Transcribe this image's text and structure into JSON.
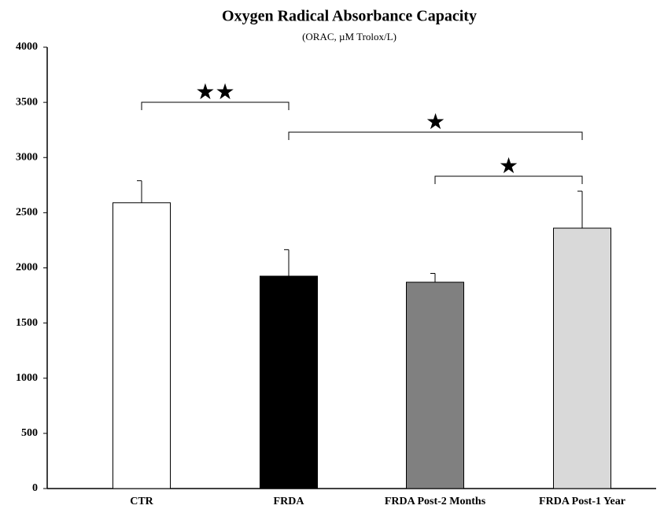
{
  "chart_data": {
    "type": "bar",
    "title": "Oxygen Radical Absorbance Capacity",
    "subtitle": "(ORAC, µM Trolox/L)",
    "categories": [
      "CTR",
      "FRDA",
      "FRDA Post-2 Months",
      "FRDA Post-1 Year"
    ],
    "values": [
      2590,
      1925,
      1870,
      2360
    ],
    "errors": [
      200,
      240,
      80,
      335
    ],
    "colors": [
      "#ffffff",
      "#000000",
      "#808080",
      "#d9d9d9"
    ],
    "ylim": [
      0,
      4000
    ],
    "yticks": [
      0,
      500,
      1000,
      1500,
      2000,
      2500,
      3000,
      3500,
      4000
    ],
    "grid": false,
    "annotations": [
      "★★",
      "★",
      "★"
    ]
  }
}
